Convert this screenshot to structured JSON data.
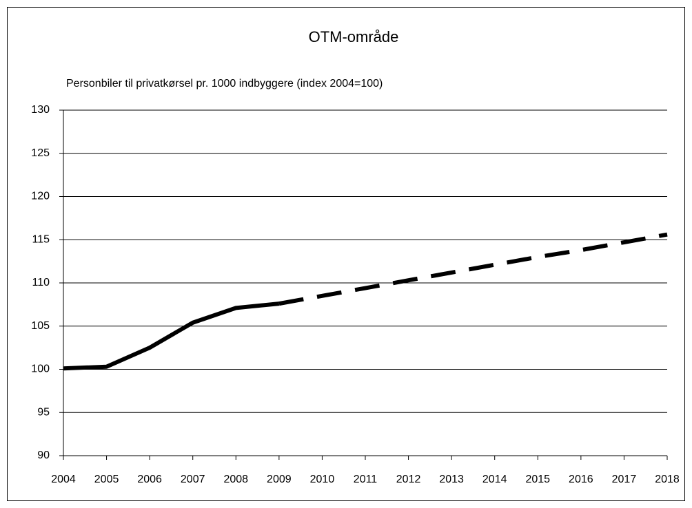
{
  "chart_data": {
    "type": "line",
    "title": "OTM-område",
    "subtitle": "Personbiler til privatkørsel pr. 1000 indbyggere (index 2004=100)",
    "categories": [
      "2004",
      "2005",
      "2006",
      "2007",
      "2008",
      "2009",
      "2010",
      "2011",
      "2012",
      "2013",
      "2014",
      "2015",
      "2016",
      "2017",
      "2018"
    ],
    "series": [
      {
        "color": "#000000",
        "dashed": false,
        "values": [
          100.1,
          100.3,
          102.5,
          105.4,
          107.1,
          107.6,
          null,
          null,
          null,
          null,
          null,
          null,
          null,
          null,
          null
        ]
      },
      {
        "color": "#000000",
        "dashed": true,
        "values": [
          null,
          null,
          null,
          null,
          null,
          107.6,
          108.5,
          109.4,
          110.3,
          111.2,
          112.1,
          113.0,
          113.8,
          114.7,
          115.6
        ]
      }
    ],
    "ylim": [
      90,
      130
    ],
    "yticks": [
      90,
      95,
      100,
      105,
      110,
      115,
      120,
      125,
      130
    ],
    "grid": true
  }
}
